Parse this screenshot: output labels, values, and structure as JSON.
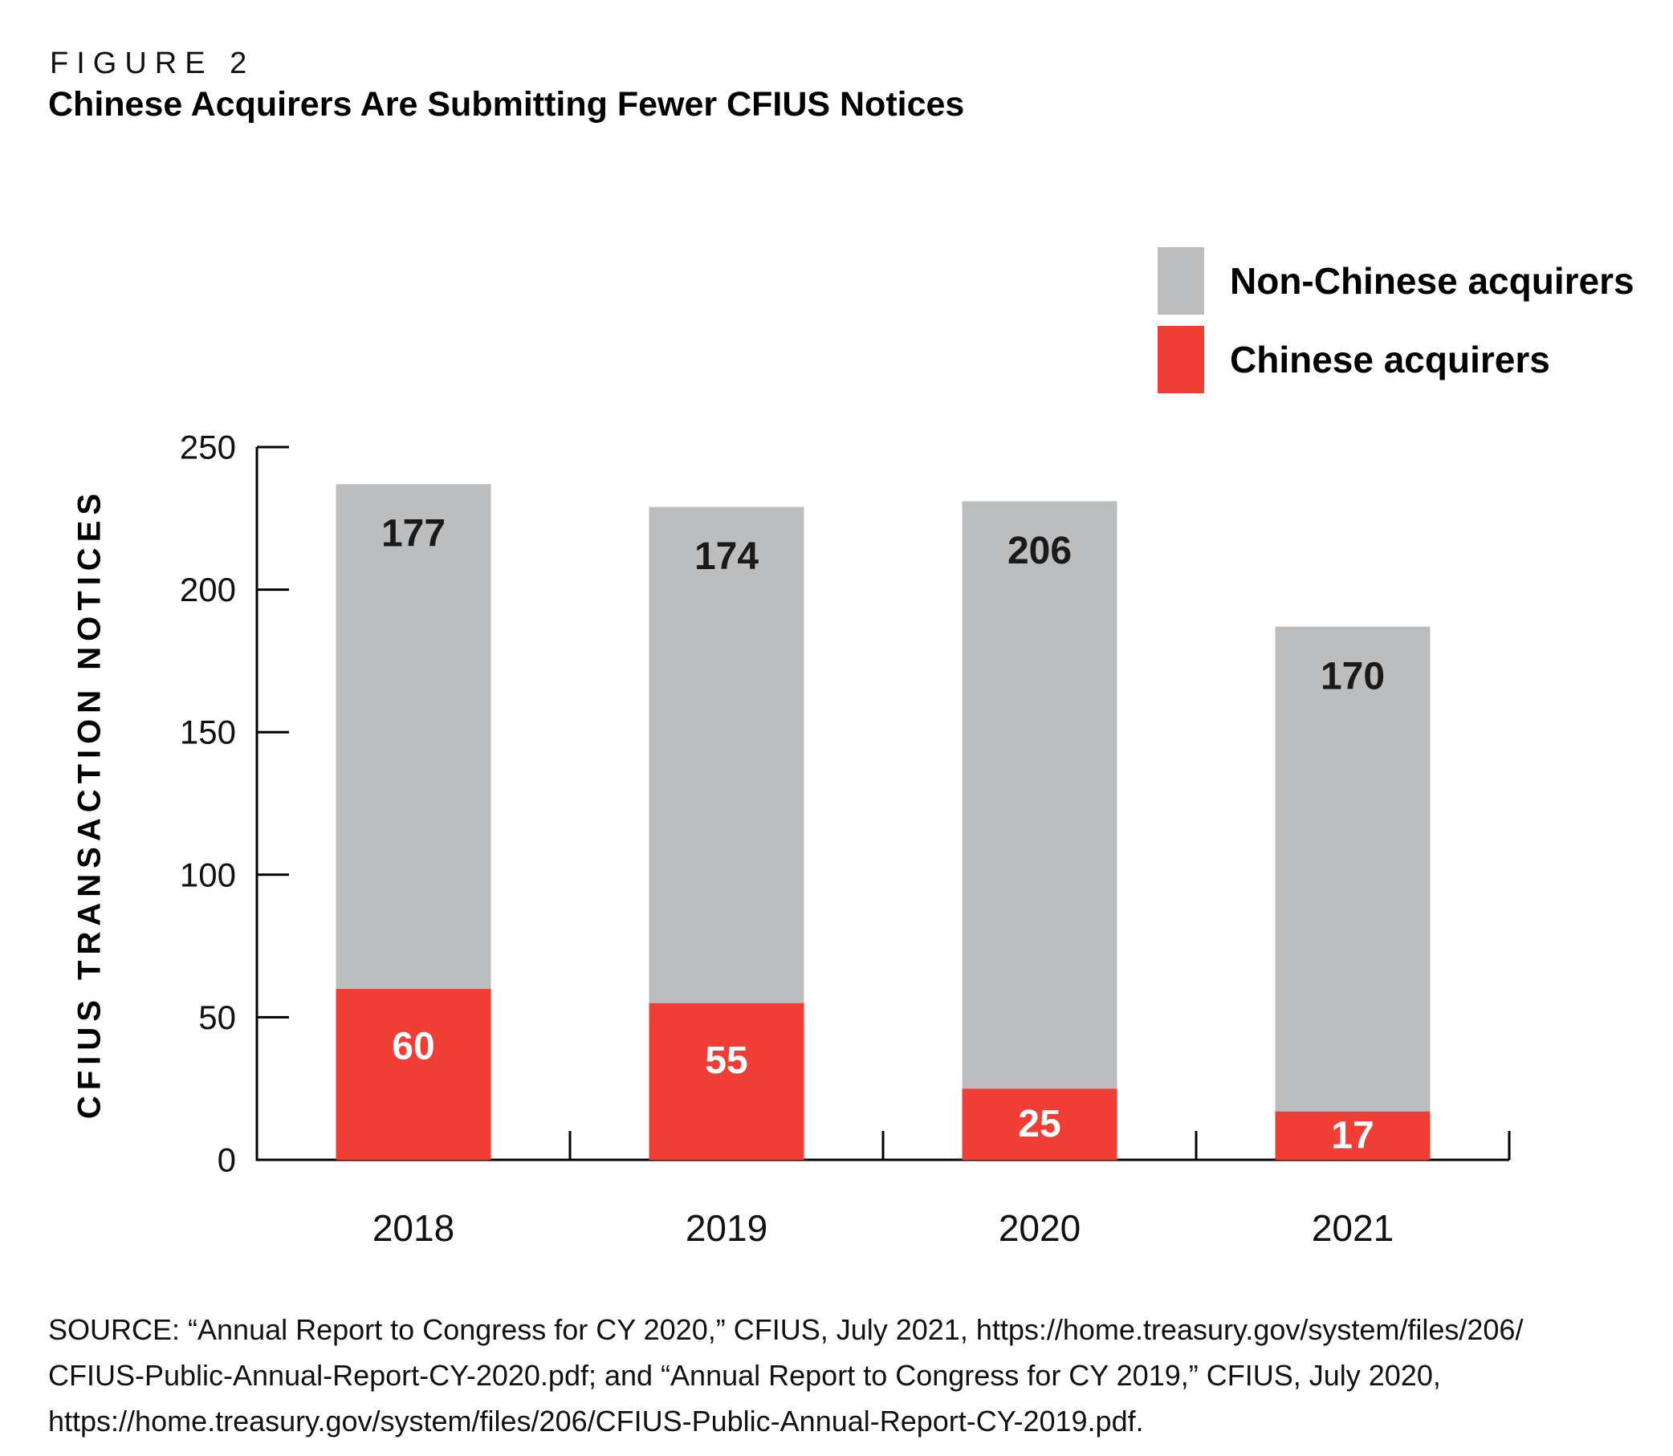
{
  "header": {
    "figure_label": "FIGURE 2",
    "title": "Chinese Acquirers Are Submitting Fewer CFIUS Notices"
  },
  "legend": [
    {
      "label": "Non-Chinese acquirers",
      "color": "#BCBDBF"
    },
    {
      "label": "Chinese acquirers",
      "color": "#F03E36"
    }
  ],
  "chart_data": {
    "type": "bar",
    "stacked": true,
    "categories": [
      "2018",
      "2019",
      "2020",
      "2021"
    ],
    "series": [
      {
        "name": "Chinese acquirers",
        "color": "#F03E36",
        "label_color": "#FFFFFF",
        "values": [
          60,
          55,
          25,
          17
        ]
      },
      {
        "name": "Non-Chinese acquirers",
        "color": "#BCBDBF",
        "label_color": "#1A1A1A",
        "values": [
          177,
          174,
          206,
          170
        ]
      }
    ],
    "totals": [
      237,
      229,
      231,
      187
    ],
    "title": "Chinese Acquirers Are Submitting Fewer CFIUS Notices",
    "xlabel": "",
    "ylabel": "CFIUS TRANSACTION NOTICES",
    "ylim": [
      0,
      250
    ],
    "yticks": [
      0,
      50,
      100,
      150,
      200,
      250
    ],
    "grid": false,
    "legend_position": "top-right"
  },
  "source": {
    "lines": [
      "SOURCE: “Annual Report to Congress for CY 2020,” CFIUS, July 2021, https://home.treasury.gov/system/files/206/",
      "CFIUS-Public-Annual-Report-CY-2020.pdf; and “Annual Report to Congress for CY 2019,” CFIUS, July 2020,",
      "https://home.treasury.gov/system/files/206/CFIUS-Public-Annual-Report-CY-2019.pdf."
    ]
  }
}
